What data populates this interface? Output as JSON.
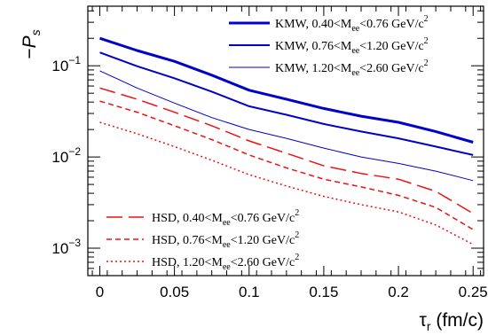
{
  "chart_data": {
    "type": "line",
    "xlabel_symbol": "τ",
    "xlabel_sub": "r",
    "xlabel_unit": " (fm/c)",
    "ylabel_prefix": "−",
    "ylabel_symbol": "P",
    "ylabel_sub": "s",
    "xlim": [
      -0.008,
      0.257
    ],
    "ylim": [
      0.0005,
      0.45
    ],
    "yscale": "log",
    "x_ticks": [
      0,
      0.05,
      0.1,
      0.15,
      0.2,
      0.25
    ],
    "x_tick_labels": [
      "0",
      "0.05",
      "0.1",
      "0.15",
      "0.2",
      "0.25"
    ],
    "y_ticks": [
      {
        "base": "10",
        "exp": "−1",
        "value": 0.1
      },
      {
        "base": "10",
        "exp": "−2",
        "value": 0.01
      },
      {
        "base": "10",
        "exp": "−3",
        "value": 0.001
      }
    ],
    "grid": false,
    "legends": [
      {
        "placement": "top-right",
        "entries": [
          0,
          1,
          2
        ]
      },
      {
        "placement": "bottom-left",
        "entries": [
          3,
          4,
          5
        ]
      }
    ],
    "series": [
      {
        "model": "KMW",
        "low": "0.40",
        "high": "0.76",
        "color": "#0000cc",
        "dash": "solid",
        "width": 3,
        "x": [
          0,
          0.025,
          0.05,
          0.075,
          0.1,
          0.125,
          0.15,
          0.175,
          0.2,
          0.225,
          0.25
        ],
        "y": [
          0.2,
          0.147,
          0.112,
          0.079,
          0.054,
          0.043,
          0.034,
          0.028,
          0.024,
          0.019,
          0.0145
        ]
      },
      {
        "model": "KMW",
        "low": "0.76",
        "high": "1.20",
        "color": "#0000cc",
        "dash": "solid",
        "width": 2,
        "x": [
          0,
          0.025,
          0.05,
          0.075,
          0.1,
          0.125,
          0.15,
          0.175,
          0.2,
          0.225,
          0.25
        ],
        "y": [
          0.14,
          0.099,
          0.073,
          0.052,
          0.036,
          0.029,
          0.023,
          0.019,
          0.016,
          0.013,
          0.0105
        ]
      },
      {
        "model": "KMW",
        "low": "1.20",
        "high": "2.60",
        "color": "#0000cc",
        "dash": "solid",
        "width": 1,
        "x": [
          0,
          0.025,
          0.05,
          0.075,
          0.1,
          0.125,
          0.15,
          0.175,
          0.2,
          0.225,
          0.25
        ],
        "y": [
          0.088,
          0.057,
          0.039,
          0.027,
          0.02,
          0.016,
          0.0125,
          0.01,
          0.0085,
          0.007,
          0.0055
        ]
      },
      {
        "model": "HSD",
        "low": "0.40",
        "high": "0.76",
        "color": "#ee1111",
        "dash": "18,7",
        "width": 1.5,
        "x": [
          0,
          0.025,
          0.05,
          0.075,
          0.1,
          0.125,
          0.15,
          0.175,
          0.2,
          0.225,
          0.25
        ],
        "y": [
          0.057,
          0.043,
          0.031,
          0.022,
          0.015,
          0.011,
          0.008,
          0.0066,
          0.0057,
          0.0042,
          0.0024
        ]
      },
      {
        "model": "HSD",
        "low": "0.76",
        "high": "1.20",
        "color": "#ee1111",
        "dash": "6,4",
        "width": 1.5,
        "x": [
          0,
          0.025,
          0.05,
          0.075,
          0.1,
          0.125,
          0.15,
          0.175,
          0.2,
          0.225,
          0.25
        ],
        "y": [
          0.041,
          0.031,
          0.022,
          0.0155,
          0.0105,
          0.0076,
          0.0057,
          0.0047,
          0.0038,
          0.0028,
          0.0016
        ]
      },
      {
        "model": "HSD",
        "low": "1.20",
        "high": "2.60",
        "color": "#ee1111",
        "dash": "2,3",
        "width": 1.5,
        "x": [
          0,
          0.025,
          0.05,
          0.075,
          0.1,
          0.125,
          0.15,
          0.175,
          0.2,
          0.225,
          0.25
        ],
        "y": [
          0.024,
          0.018,
          0.013,
          0.0092,
          0.0064,
          0.0048,
          0.0037,
          0.003,
          0.0025,
          0.0018,
          0.0011
        ]
      }
    ],
    "legend_label_parts": {
      "M": "M",
      "sub": "ee",
      "lt": "<",
      "unit": " GeV/c",
      "unit_exp": "2"
    }
  }
}
